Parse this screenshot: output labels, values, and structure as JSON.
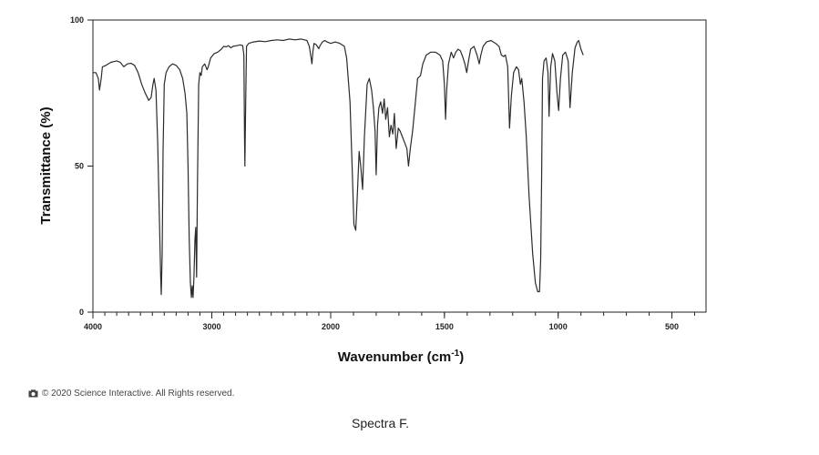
{
  "chart_data": {
    "type": "line",
    "title": "",
    "xlabel": "Wavenumber (cm",
    "xlabel_sup": "-1",
    "xlabel_close": ")",
    "ylabel": "Transmittance (%)",
    "xlim": [
      4000,
      350
    ],
    "ylim": [
      0,
      100
    ],
    "x_ticks": [
      4000,
      3000,
      2000,
      1500,
      1000,
      500
    ],
    "y_ticks": [
      0,
      50,
      100
    ],
    "grid": false,
    "series": [
      {
        "color": "#2b2b2b",
        "points": [
          [
            4000,
            82
          ],
          [
            3975,
            82
          ],
          [
            3955,
            80
          ],
          [
            3945,
            76
          ],
          [
            3930,
            80
          ],
          [
            3920,
            84
          ],
          [
            3890,
            84.5
          ],
          [
            3850,
            85.5
          ],
          [
            3800,
            86
          ],
          [
            3770,
            85.5
          ],
          [
            3740,
            84
          ],
          [
            3710,
            85
          ],
          [
            3680,
            85.2
          ],
          [
            3650,
            84.5
          ],
          [
            3620,
            82
          ],
          [
            3590,
            78
          ],
          [
            3560,
            75
          ],
          [
            3530,
            72.5
          ],
          [
            3510,
            73.5
          ],
          [
            3495,
            78
          ],
          [
            3485,
            80
          ],
          [
            3470,
            76
          ],
          [
            3455,
            58
          ],
          [
            3440,
            30
          ],
          [
            3430,
            12
          ],
          [
            3425,
            6
          ],
          [
            3418,
            20
          ],
          [
            3410,
            55
          ],
          [
            3400,
            78
          ],
          [
            3385,
            82
          ],
          [
            3360,
            84
          ],
          [
            3330,
            85
          ],
          [
            3300,
            84.5
          ],
          [
            3270,
            83
          ],
          [
            3245,
            80
          ],
          [
            3225,
            75
          ],
          [
            3210,
            68
          ],
          [
            3200,
            50
          ],
          [
            3190,
            25
          ],
          [
            3180,
            10
          ],
          [
            3172,
            5
          ],
          [
            3165,
            9
          ],
          [
            3158,
            5
          ],
          [
            3150,
            12
          ],
          [
            3142,
            25
          ],
          [
            3135,
            29
          ],
          [
            3128,
            12
          ],
          [
            3120,
            45
          ],
          [
            3110,
            78
          ],
          [
            3100,
            82
          ],
          [
            3090,
            81
          ],
          [
            3080,
            84
          ],
          [
            3060,
            85
          ],
          [
            3040,
            83
          ],
          [
            3030,
            84
          ],
          [
            3010,
            87
          ],
          [
            2980,
            88.5
          ],
          [
            2950,
            89
          ],
          [
            2920,
            90
          ],
          [
            2900,
            91
          ],
          [
            2880,
            90.8
          ],
          [
            2860,
            91.2
          ],
          [
            2840,
            90.5
          ],
          [
            2820,
            91
          ],
          [
            2790,
            91.2
          ],
          [
            2760,
            91.5
          ],
          [
            2740,
            91.2
          ],
          [
            2730,
            88
          ],
          [
            2725,
            60
          ],
          [
            2722,
            50
          ],
          [
            2715,
            72
          ],
          [
            2708,
            91
          ],
          [
            2690,
            92
          ],
          [
            2650,
            92.5
          ],
          [
            2600,
            92.8
          ],
          [
            2550,
            92.6
          ],
          [
            2500,
            93
          ],
          [
            2450,
            93.2
          ],
          [
            2400,
            93
          ],
          [
            2350,
            93.5
          ],
          [
            2300,
            93.2
          ],
          [
            2250,
            93.5
          ],
          [
            2220,
            93.2
          ],
          [
            2200,
            93
          ],
          [
            2180,
            91
          ],
          [
            2165,
            87
          ],
          [
            2158,
            85
          ],
          [
            2150,
            89
          ],
          [
            2140,
            92
          ],
          [
            2120,
            91.5
          ],
          [
            2100,
            90.2
          ],
          [
            2090,
            91.2
          ],
          [
            2070,
            92.5
          ],
          [
            2050,
            93
          ],
          [
            2030,
            92.5
          ],
          [
            2000,
            92
          ],
          [
            1980,
            92.5
          ],
          [
            1960,
            92
          ],
          [
            1940,
            91
          ],
          [
            1930,
            87
          ],
          [
            1915,
            72
          ],
          [
            1905,
            48
          ],
          [
            1898,
            30
          ],
          [
            1890,
            28
          ],
          [
            1882,
            42
          ],
          [
            1875,
            55
          ],
          [
            1868,
            50
          ],
          [
            1860,
            42
          ],
          [
            1852,
            60
          ],
          [
            1840,
            78
          ],
          [
            1830,
            80
          ],
          [
            1820,
            76
          ],
          [
            1812,
            70
          ],
          [
            1805,
            62
          ],
          [
            1800,
            47
          ],
          [
            1794,
            64
          ],
          [
            1788,
            70
          ],
          [
            1780,
            72
          ],
          [
            1772,
            68
          ],
          [
            1765,
            73
          ],
          [
            1758,
            66
          ],
          [
            1750,
            70
          ],
          [
            1742,
            60
          ],
          [
            1735,
            64
          ],
          [
            1727,
            61
          ],
          [
            1720,
            68
          ],
          [
            1712,
            56
          ],
          [
            1703,
            63
          ],
          [
            1695,
            62
          ],
          [
            1685,
            60
          ],
          [
            1675,
            58
          ],
          [
            1665,
            56
          ],
          [
            1658,
            50
          ],
          [
            1650,
            56
          ],
          [
            1640,
            62
          ],
          [
            1630,
            70
          ],
          [
            1618,
            80
          ],
          [
            1605,
            81
          ],
          [
            1595,
            85
          ],
          [
            1580,
            88
          ],
          [
            1560,
            89
          ],
          [
            1540,
            89
          ],
          [
            1520,
            88
          ],
          [
            1508,
            86
          ],
          [
            1500,
            78
          ],
          [
            1495,
            66
          ],
          [
            1490,
            76
          ],
          [
            1482,
            85
          ],
          [
            1470,
            89
          ],
          [
            1460,
            87
          ],
          [
            1450,
            89
          ],
          [
            1440,
            90
          ],
          [
            1430,
            89.5
          ],
          [
            1420,
            87.5
          ],
          [
            1410,
            85
          ],
          [
            1402,
            82
          ],
          [
            1394,
            86
          ],
          [
            1385,
            90
          ],
          [
            1370,
            91
          ],
          [
            1357,
            88
          ],
          [
            1347,
            85
          ],
          [
            1340,
            88
          ],
          [
            1330,
            91
          ],
          [
            1315,
            92.5
          ],
          [
            1295,
            93
          ],
          [
            1275,
            92
          ],
          [
            1260,
            91
          ],
          [
            1250,
            88
          ],
          [
            1240,
            87.5
          ],
          [
            1232,
            88
          ],
          [
            1222,
            84
          ],
          [
            1214,
            63
          ],
          [
            1206,
            74
          ],
          [
            1196,
            82
          ],
          [
            1184,
            84
          ],
          [
            1174,
            83
          ],
          [
            1166,
            78
          ],
          [
            1160,
            80
          ],
          [
            1150,
            72
          ],
          [
            1140,
            60
          ],
          [
            1128,
            40
          ],
          [
            1112,
            20
          ],
          [
            1100,
            10
          ],
          [
            1090,
            7
          ],
          [
            1082,
            7
          ],
          [
            1077,
            18
          ],
          [
            1073,
            45
          ],
          [
            1069,
            80
          ],
          [
            1062,
            86
          ],
          [
            1053,
            87
          ],
          [
            1045,
            82
          ],
          [
            1040,
            67
          ],
          [
            1033,
            84
          ],
          [
            1025,
            88.5
          ],
          [
            1015,
            86
          ],
          [
            1005,
            75
          ],
          [
            998,
            69
          ],
          [
            990,
            80
          ],
          [
            980,
            88
          ],
          [
            968,
            89
          ],
          [
            956,
            86
          ],
          [
            948,
            70
          ],
          [
            938,
            82
          ],
          [
            926,
            90.5
          ],
          [
            916,
            92.5
          ],
          [
            910,
            93
          ],
          [
            900,
            90
          ],
          [
            890,
            88
          ]
        ]
      }
    ]
  },
  "footer": {
    "copyright": "© 2020 Science Interactive. All Rights reserved.",
    "caption": "Spectra F."
  }
}
